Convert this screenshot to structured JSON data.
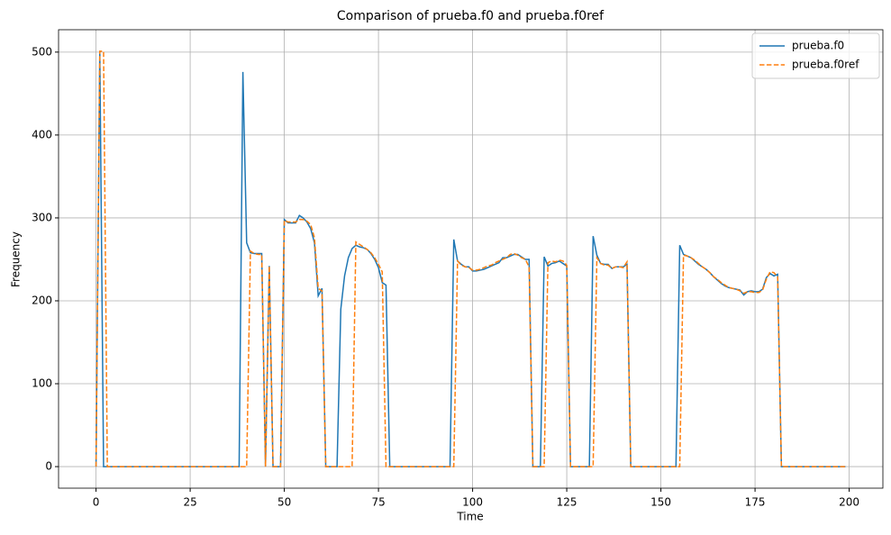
{
  "chart_data": {
    "type": "line",
    "title": "Comparison of prueba.f0 and prueba.f0ref",
    "x_label": "Time",
    "y_label": "Frequency",
    "x": [
      0,
      1,
      2,
      3,
      4,
      5,
      6,
      7,
      8,
      9,
      10,
      11,
      12,
      13,
      14,
      15,
      16,
      17,
      18,
      19,
      20,
      21,
      22,
      23,
      24,
      25,
      26,
      27,
      28,
      29,
      30,
      31,
      32,
      33,
      34,
      35,
      36,
      37,
      38,
      39,
      40,
      41,
      42,
      43,
      44,
      45,
      46,
      47,
      48,
      49,
      50,
      51,
      52,
      53,
      54,
      55,
      56,
      57,
      58,
      59,
      60,
      61,
      62,
      63,
      64,
      65,
      66,
      67,
      68,
      69,
      70,
      71,
      72,
      73,
      74,
      75,
      76,
      77,
      78,
      79,
      80,
      81,
      82,
      83,
      84,
      85,
      86,
      87,
      88,
      89,
      90,
      91,
      92,
      93,
      94,
      95,
      96,
      97,
      98,
      99,
      100,
      101,
      102,
      103,
      104,
      105,
      106,
      107,
      108,
      109,
      110,
      111,
      112,
      113,
      114,
      115,
      116,
      117,
      118,
      119,
      120,
      121,
      122,
      123,
      124,
      125,
      126,
      127,
      128,
      129,
      130,
      131,
      132,
      133,
      134,
      135,
      136,
      137,
      138,
      139,
      140,
      141,
      142,
      143,
      144,
      145,
      146,
      147,
      148,
      149,
      150,
      151,
      152,
      153,
      154,
      155,
      156,
      157,
      158,
      159,
      160,
      161,
      162,
      163,
      164,
      165,
      166,
      167,
      168,
      169,
      170,
      171,
      172,
      173,
      174,
      175,
      176,
      177,
      178,
      179,
      180,
      181,
      182,
      183,
      184,
      185,
      186,
      187,
      188,
      189,
      190,
      191,
      192,
      193,
      194,
      195,
      196,
      197,
      198,
      199
    ],
    "series": [
      {
        "name": "prueba.f0",
        "color": "#1f77b4",
        "linestyle": "solid",
        "values": [
          0,
          501,
          0,
          0,
          0,
          0,
          0,
          0,
          0,
          0,
          0,
          0,
          0,
          0,
          0,
          0,
          0,
          0,
          0,
          0,
          0,
          0,
          0,
          0,
          0,
          0,
          0,
          0,
          0,
          0,
          0,
          0,
          0,
          0,
          0,
          0,
          0,
          0,
          0,
          476,
          270,
          258,
          257,
          257,
          257,
          0,
          242,
          0,
          0,
          0,
          298,
          294,
          294,
          294,
          303,
          300,
          295,
          287,
          270,
          206,
          215,
          0,
          0,
          0,
          0,
          190,
          230,
          252,
          263,
          267,
          265,
          264,
          262,
          257,
          250,
          240,
          222,
          219,
          0,
          0,
          0,
          0,
          0,
          0,
          0,
          0,
          0,
          0,
          0,
          0,
          0,
          0,
          0,
          0,
          0,
          274,
          248,
          244,
          241,
          241,
          236,
          236,
          237,
          238,
          240,
          242,
          244,
          246,
          252,
          252,
          254,
          256,
          256,
          253,
          250,
          250,
          0,
          0,
          0,
          253,
          242,
          245,
          246,
          248,
          245,
          242,
          0,
          0,
          0,
          0,
          0,
          0,
          278,
          255,
          245,
          244,
          244,
          239,
          241,
          241,
          241,
          244,
          0,
          0,
          0,
          0,
          0,
          0,
          0,
          0,
          0,
          0,
          0,
          0,
          0,
          267,
          256,
          254,
          252,
          248,
          244,
          241,
          238,
          234,
          229,
          225,
          221,
          218,
          216,
          215,
          214,
          213,
          207,
          211,
          212,
          211,
          211,
          214,
          228,
          233,
          230,
          232,
          0,
          0,
          0,
          0,
          0,
          0,
          0,
          0,
          0,
          0,
          0,
          0,
          0,
          0,
          0,
          0,
          0,
          0
        ]
      },
      {
        "name": "prueba.f0ref",
        "color": "#ff7f0e",
        "linestyle": "dashed",
        "values": [
          0,
          501,
          501,
          0,
          0,
          0,
          0,
          0,
          0,
          0,
          0,
          0,
          0,
          0,
          0,
          0,
          0,
          0,
          0,
          0,
          0,
          0,
          0,
          0,
          0,
          0,
          0,
          0,
          0,
          0,
          0,
          0,
          0,
          0,
          0,
          0,
          0,
          0,
          0,
          0,
          0,
          260,
          257,
          256,
          256,
          0,
          242,
          0,
          0,
          0,
          297,
          295,
          295,
          295,
          298,
          298,
          296,
          292,
          276,
          215,
          212,
          0,
          0,
          0,
          0,
          0,
          0,
          0,
          0,
          271,
          268,
          265,
          262,
          258,
          252,
          244,
          235,
          0,
          0,
          0,
          0,
          0,
          0,
          0,
          0,
          0,
          0,
          0,
          0,
          0,
          0,
          0,
          0,
          0,
          0,
          0,
          248,
          243,
          241,
          240,
          237,
          237,
          238,
          240,
          242,
          243,
          246,
          248,
          250,
          252,
          256,
          257,
          255,
          252,
          250,
          241,
          0,
          0,
          0,
          0,
          246,
          248,
          247,
          249,
          248,
          243,
          0,
          0,
          0,
          0,
          0,
          0,
          0,
          252,
          245,
          243,
          243,
          239,
          241,
          241,
          240,
          247,
          0,
          0,
          0,
          0,
          0,
          0,
          0,
          0,
          0,
          0,
          0,
          0,
          0,
          0,
          255,
          254,
          252,
          249,
          245,
          241,
          238,
          234,
          229,
          226,
          222,
          219,
          216,
          215,
          214,
          212,
          209,
          211,
          211,
          210,
          210,
          213,
          226,
          235,
          234,
          229,
          0,
          0,
          0,
          0,
          0,
          0,
          0,
          0,
          0,
          0,
          0,
          0,
          0,
          0,
          0,
          0,
          0,
          0
        ]
      }
    ],
    "xlim": [
      -9.95,
      208.95
    ],
    "xticks": [
      0,
      25,
      50,
      75,
      100,
      125,
      150,
      175,
      200
    ],
    "ylim": [
      -26,
      527
    ],
    "yticks": [
      0,
      100,
      200,
      300,
      400,
      500
    ],
    "grid": true,
    "legend": "upper right"
  }
}
